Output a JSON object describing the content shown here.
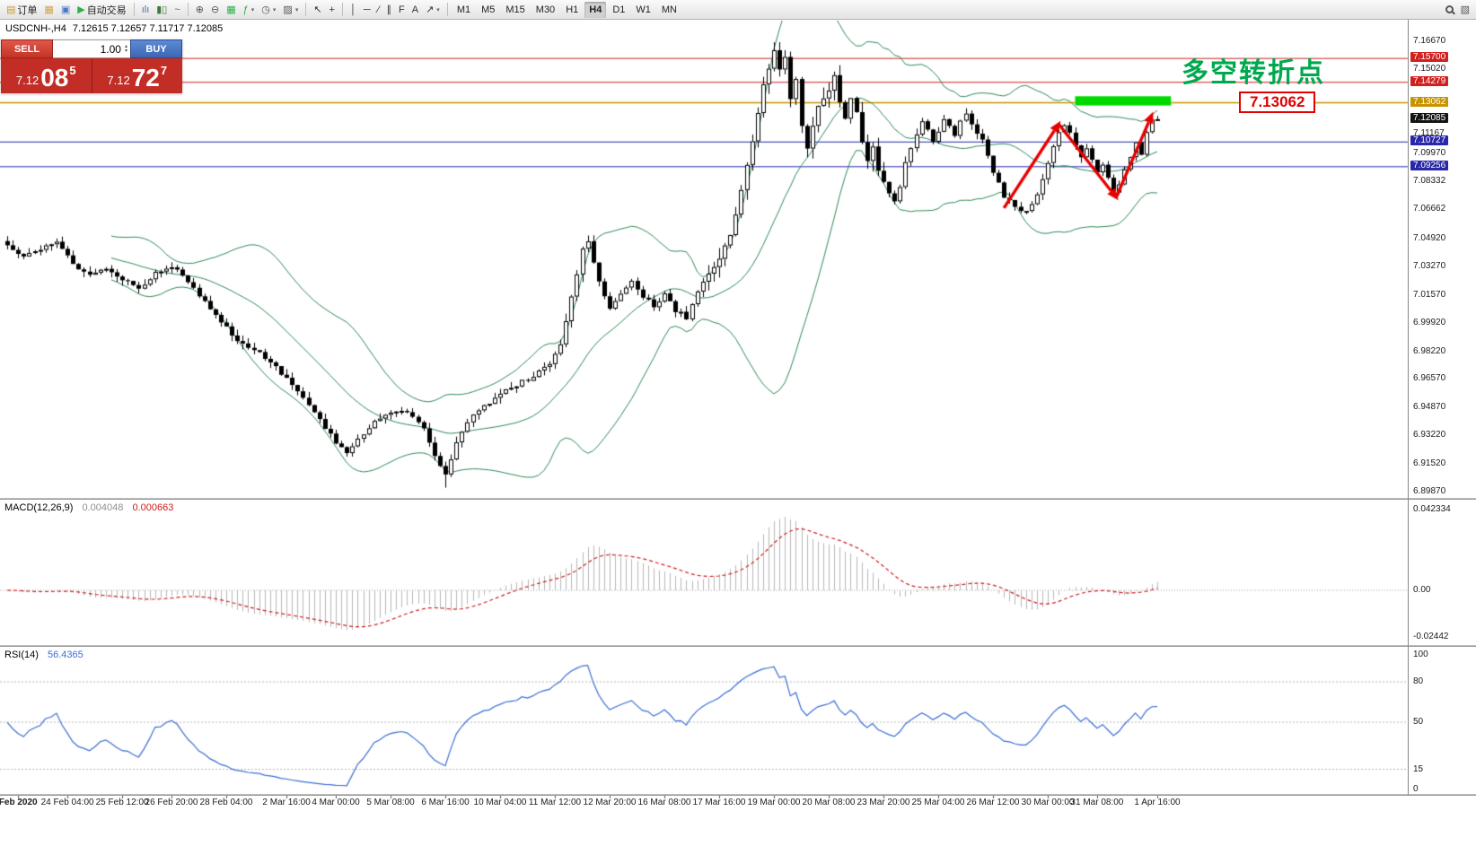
{
  "toolbar": {
    "items": [
      {
        "type": "button",
        "name": "new-order-button",
        "label": "订单",
        "glyph": "▤",
        "color": "#c99a2e"
      },
      {
        "type": "button",
        "name": "chart-window-icon",
        "glyph": "▦",
        "color": "#d2a24c"
      },
      {
        "type": "button",
        "name": "profiles-icon",
        "glyph": "▣",
        "color": "#4a78c8"
      },
      {
        "type": "button",
        "name": "autotrading-button",
        "label": "自动交易",
        "glyph": "▶",
        "color": "#2fae4a"
      },
      {
        "type": "sep"
      },
      {
        "type": "button",
        "name": "bar-chart-type-icon",
        "glyph": "ılı",
        "color": "#4a6da8"
      },
      {
        "type": "button",
        "name": "candlestick-type-icon",
        "glyph": "▮▯",
        "color": "#3a7a3a"
      },
      {
        "type": "button",
        "name": "line-chart-type-icon",
        "glyph": "~",
        "color": "#3a7a3a"
      },
      {
        "type": "sep"
      },
      {
        "type": "button",
        "name": "zoom-in-icon",
        "glyph": "⊕",
        "color": "#555555"
      },
      {
        "type": "button",
        "name": "zoom-out-icon",
        "glyph": "⊖",
        "color": "#555555"
      },
      {
        "type": "button",
        "name": "grid-icon",
        "glyph": "▦",
        "color": "#2fae4a"
      },
      {
        "type": "button",
        "name": "indicators-icon",
        "glyph": "ƒ",
        "color": "#2fae4a",
        "caret": true
      },
      {
        "type": "button",
        "name": "periods-icon",
        "glyph": "◷",
        "color": "#555555",
        "caret": true
      },
      {
        "type": "button",
        "name": "templates-icon",
        "glyph": "▨",
        "color": "#555555",
        "caret": true
      },
      {
        "type": "sep"
      },
      {
        "type": "button",
        "name": "cursor-icon",
        "glyph": "↖",
        "color": "#333333"
      },
      {
        "type": "button",
        "name": "crosshair-icon",
        "glyph": "+",
        "color": "#333333"
      },
      {
        "type": "sep"
      },
      {
        "type": "button",
        "name": "vertical-line-icon",
        "glyph": "│",
        "color": "#333333"
      },
      {
        "type": "button",
        "name": "horizontal-line-icon",
        "glyph": "─",
        "color": "#333333"
      },
      {
        "type": "button",
        "name": "trendline-icon",
        "glyph": "∕",
        "color": "#333333"
      },
      {
        "type": "button",
        "name": "channel-icon",
        "glyph": "∥",
        "color": "#333333"
      },
      {
        "type": "button",
        "name": "fibonacci-icon",
        "glyph": "F",
        "color": "#333333"
      },
      {
        "type": "button",
        "name": "text-icon",
        "glyph": "A",
        "color": "#333333"
      },
      {
        "type": "button",
        "name": "arrows-icon",
        "glyph": "↗",
        "color": "#333333",
        "caret": true
      },
      {
        "type": "sep"
      },
      {
        "type": "tf",
        "name": "timeframe-m1",
        "label": "M1"
      },
      {
        "type": "tf",
        "name": "timeframe-m5",
        "label": "M5"
      },
      {
        "type": "tf",
        "name": "timeframe-m15",
        "label": "M15"
      },
      {
        "type": "tf",
        "name": "timeframe-m30",
        "label": "M30"
      },
      {
        "type": "tf",
        "name": "timeframe-h1",
        "label": "H1"
      },
      {
        "type": "tf",
        "name": "timeframe-h4",
        "label": "H4",
        "active": true
      },
      {
        "type": "tf",
        "name": "timeframe-d1",
        "label": "D1"
      },
      {
        "type": "tf",
        "name": "timeframe-w1",
        "label": "W1"
      },
      {
        "type": "tf",
        "name": "timeframe-mn",
        "label": "MN"
      },
      {
        "type": "button",
        "name": "search-icon",
        "glyph": "MAG",
        "right": true
      },
      {
        "type": "button",
        "name": "objects-list-icon",
        "glyph": "▧",
        "color": "#555555"
      }
    ]
  },
  "chart_header": {
    "symbol": "USDCNH-,H4",
    "ohlc": "7.12615 7.12657 7.11717 7.12085"
  },
  "trade_panel": {
    "sell_label": "SELL",
    "buy_label": "BUY",
    "volume": "1.00",
    "sell_price": {
      "base": "7.12",
      "big": "08",
      "sup": "5"
    },
    "buy_price": {
      "base": "7.12",
      "big": "72",
      "sup": "7"
    }
  },
  "indicators": {
    "macd": {
      "label": "MACD(12,26,9)",
      "value": "0.004048",
      "signal_value": "0.000663"
    },
    "rsi": {
      "label": "RSI(14)",
      "value": "56.4365"
    }
  },
  "annotations": {
    "cn_text": "多空转折点",
    "price_callout": "7.13062"
  },
  "colors": {
    "badges": {
      "red": "#d02020",
      "gold": "#c79400",
      "dark": "#141414",
      "blue": "#2727a8"
    },
    "accent_green": "#00a84e",
    "accent_red": "#e00000",
    "bull_candle": "#ffffff",
    "bear_candle": "#000000"
  },
  "chart_data": {
    "type": "candlestick",
    "symbol": "USDCNH-",
    "timeframe": "H4",
    "ohlc_display": {
      "open": 7.12615,
      "high": 7.12657,
      "low": 7.11717,
      "close": 7.12085
    },
    "price_ylim": [
      6.8949,
      7.18005
    ],
    "bars_count": 211,
    "price_axis_labels": [
      {
        "text": "7.16670"
      },
      {
        "text": "7.15700",
        "badge": "red"
      },
      {
        "text": "7.15020"
      },
      {
        "text": "7.14279",
        "badge": "red"
      },
      {
        "text": "7.13062",
        "badge": "gold"
      },
      {
        "text": "7.12085",
        "badge": "dark"
      },
      {
        "text": "7.11167"
      },
      {
        "text": "7.10727",
        "badge": "blue"
      },
      {
        "text": "7.09970"
      },
      {
        "text": "7.09256",
        "badge": "blue"
      },
      {
        "text": "7.08332"
      },
      {
        "text": "7.06662"
      },
      {
        "text": "7.04920"
      },
      {
        "text": "7.03270"
      },
      {
        "text": "7.01570"
      },
      {
        "text": "6.99920"
      },
      {
        "text": "6.98220"
      },
      {
        "text": "6.96570"
      },
      {
        "text": "6.94870"
      },
      {
        "text": "6.93220"
      },
      {
        "text": "6.91520"
      },
      {
        "text": "6.89870"
      }
    ],
    "hlines": [
      {
        "price": 7.157,
        "color": "red",
        "width": 1
      },
      {
        "price": 7.14279,
        "color": "red",
        "width": 1
      },
      {
        "price": 7.13062,
        "color": "gold",
        "width": 1.5
      },
      {
        "price": 7.10727,
        "color": "blue",
        "width": 1
      },
      {
        "price": 7.09256,
        "color": "blue",
        "width": 1
      }
    ],
    "close_keypoints": [
      [
        0,
        7.046
      ],
      [
        3,
        7.038
      ],
      [
        6,
        7.044
      ],
      [
        9,
        7.048
      ],
      [
        12,
        7.034
      ],
      [
        15,
        7.027
      ],
      [
        18,
        7.032
      ],
      [
        21,
        7.025
      ],
      [
        24,
        7.02
      ],
      [
        27,
        7.03
      ],
      [
        30,
        7.034
      ],
      [
        33,
        7.024
      ],
      [
        36,
        7.012
      ],
      [
        39,
        7.0
      ],
      [
        42,
        6.99
      ],
      [
        45,
        6.984
      ],
      [
        48,
        6.977
      ],
      [
        51,
        6.966
      ],
      [
        54,
        6.955
      ],
      [
        57,
        6.942
      ],
      [
        60,
        6.928
      ],
      [
        62,
        6.923
      ],
      [
        64,
        6.931
      ],
      [
        66,
        6.938
      ],
      [
        69,
        6.944
      ],
      [
        72,
        6.948
      ],
      [
        74,
        6.944
      ],
      [
        76,
        6.936
      ],
      [
        78,
        6.92
      ],
      [
        80,
        6.909
      ],
      [
        82,
        6.928
      ],
      [
        84,
        6.941
      ],
      [
        87,
        6.95
      ],
      [
        90,
        6.957
      ],
      [
        93,
        6.963
      ],
      [
        96,
        6.968
      ],
      [
        99,
        6.975
      ],
      [
        101,
        6.988
      ],
      [
        103,
        7.015
      ],
      [
        105,
        7.044
      ],
      [
        106,
        7.048
      ],
      [
        108,
        7.024
      ],
      [
        110,
        7.008
      ],
      [
        112,
        7.016
      ],
      [
        114,
        7.024
      ],
      [
        116,
        7.015
      ],
      [
        118,
        7.01
      ],
      [
        120,
        7.017
      ],
      [
        122,
        7.007
      ],
      [
        124,
        7.003
      ],
      [
        126,
        7.018
      ],
      [
        128,
        7.03
      ],
      [
        130,
        7.038
      ],
      [
        132,
        7.052
      ],
      [
        134,
        7.078
      ],
      [
        136,
        7.108
      ],
      [
        138,
        7.142
      ],
      [
        140,
        7.162
      ],
      [
        141,
        7.15
      ],
      [
        142,
        7.157
      ],
      [
        143,
        7.134
      ],
      [
        144,
        7.146
      ],
      [
        145,
        7.118
      ],
      [
        146,
        7.104
      ],
      [
        147,
        7.117
      ],
      [
        148,
        7.128
      ],
      [
        150,
        7.139
      ],
      [
        151,
        7.147
      ],
      [
        152,
        7.132
      ],
      [
        153,
        7.12
      ],
      [
        154,
        7.134
      ],
      [
        155,
        7.124
      ],
      [
        156,
        7.108
      ],
      [
        157,
        7.097
      ],
      [
        158,
        7.104
      ],
      [
        159,
        7.091
      ],
      [
        160,
        7.083
      ],
      [
        161,
        7.076
      ],
      [
        162,
        7.071
      ],
      [
        163,
        7.081
      ],
      [
        164,
        7.094
      ],
      [
        165,
        7.104
      ],
      [
        166,
        7.111
      ],
      [
        167,
        7.119
      ],
      [
        168,
        7.114
      ],
      [
        169,
        7.107
      ],
      [
        170,
        7.114
      ],
      [
        171,
        7.121
      ],
      [
        172,
        7.117
      ],
      [
        173,
        7.111
      ],
      [
        174,
        7.119
      ],
      [
        175,
        7.124
      ],
      [
        176,
        7.117
      ],
      [
        178,
        7.108
      ],
      [
        180,
        7.09
      ],
      [
        182,
        7.075
      ],
      [
        184,
        7.068
      ],
      [
        186,
        7.066
      ],
      [
        188,
        7.077
      ],
      [
        190,
        7.095
      ],
      [
        192,
        7.113
      ],
      [
        193,
        7.118
      ],
      [
        194,
        7.112
      ],
      [
        195,
        7.105
      ],
      [
        196,
        7.097
      ],
      [
        197,
        7.103
      ],
      [
        198,
        7.096
      ],
      [
        199,
        7.089
      ],
      [
        200,
        7.095
      ],
      [
        201,
        7.085
      ],
      [
        202,
        7.077
      ],
      [
        203,
        7.083
      ],
      [
        204,
        7.09
      ],
      [
        205,
        7.098
      ],
      [
        206,
        7.106
      ],
      [
        207,
        7.1
      ],
      [
        208,
        7.113
      ],
      [
        209,
        7.121
      ],
      [
        210,
        7.12085
      ]
    ],
    "extremes": {
      "high_bar": 140,
      "high": 7.1667,
      "low_bar": 80,
      "low": 6.9015
    },
    "bollinger": {
      "period": 20,
      "deviation": 2,
      "color": "#2e8b57"
    },
    "time_ticks": [
      {
        "label": "Feb 2020",
        "bar": 2,
        "bold": true
      },
      {
        "label": "24 Feb 04:00",
        "bar": 11
      },
      {
        "label": "25 Feb 12:00",
        "bar": 21
      },
      {
        "label": "26 Feb 20:00",
        "bar": 30
      },
      {
        "label": "28 Feb 04:00",
        "bar": 40
      },
      {
        "label": "2 Mar 16:00",
        "bar": 51
      },
      {
        "label": "4 Mar 00:00",
        "bar": 60
      },
      {
        "label": "5 Mar 08:00",
        "bar": 70
      },
      {
        "label": "6 Mar 16:00",
        "bar": 80
      },
      {
        "label": "10 Mar 04:00",
        "bar": 90
      },
      {
        "label": "11 Mar 12:00",
        "bar": 100
      },
      {
        "label": "12 Mar 20:00",
        "bar": 110
      },
      {
        "label": "16 Mar 08:00",
        "bar": 120
      },
      {
        "label": "17 Mar 16:00",
        "bar": 130
      },
      {
        "label": "19 Mar 00:00",
        "bar": 140
      },
      {
        "label": "20 Mar 08:00",
        "bar": 150
      },
      {
        "label": "23 Mar 20:00",
        "bar": 160
      },
      {
        "label": "25 Mar 04:00",
        "bar": 170
      },
      {
        "label": "26 Mar 12:00",
        "bar": 180
      },
      {
        "label": "30 Mar 00:00",
        "bar": 190
      },
      {
        "label": "31 Mar 08:00",
        "bar": 199
      },
      {
        "label": "1 Apr 16:00",
        "bar": 210
      }
    ],
    "macd": {
      "params": "12,26,9",
      "ylim": [
        -0.02915,
        0.04795
      ],
      "axis_labels": [
        "0.042334",
        "0.00",
        "-0.02442"
      ],
      "histogram_color": "#b8b8b8",
      "sign al_color_note": "signal drawn dashed red",
      "signal_color": "#cc2020",
      "current": 0.004048,
      "current_signal": 0.000663
    },
    "rsi": {
      "period": 14,
      "ylim": [
        -4,
        106.7
      ],
      "levels": [
        80,
        50,
        15
      ],
      "axis_labels": [
        "100",
        "80",
        "50",
        "15",
        "0"
      ],
      "color": "#3b6fd4",
      "current": 56.4365
    },
    "overlay": {
      "green_box": {
        "bar_from": 195,
        "bar_to": 212.5,
        "price_top": 7.1345,
        "price_bottom": 7.129,
        "color": "#00d900"
      },
      "arrows": [
        {
          "from": [
            182,
            7.068
          ],
          "to": [
            192,
            7.118
          ]
        },
        {
          "from": [
            192,
            7.118
          ],
          "to": [
            202.5,
            7.0743
          ]
        },
        {
          "from": [
            202.5,
            7.0743
          ],
          "to": [
            209,
            7.1234
          ]
        }
      ],
      "arrow_color": "#e80000"
    }
  }
}
